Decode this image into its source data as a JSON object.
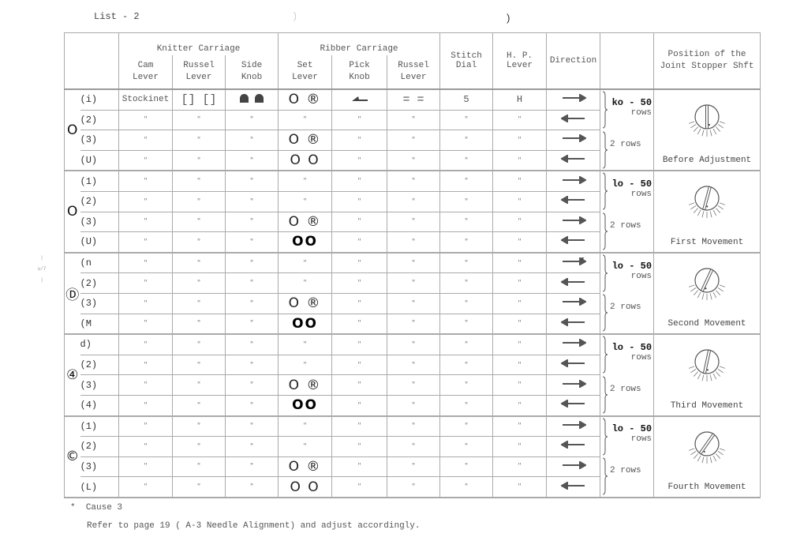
{
  "page": {
    "title": "List - 2",
    "stray_mark_1": ")",
    "stray_mark_2": ")",
    "margin_note": "u/7"
  },
  "header": {
    "knitter_carriage": "Knitter Carriage",
    "ribber_carriage": "Ribber Carriage",
    "cam_lever": "Cam\nLever",
    "knit_russel_lever": "Russel\nLever",
    "side_knob": "Side\nKnob",
    "set_lever": "Set\nLever",
    "pick_knob": "Pick\nKnob",
    "rib_russel_lever": "Russel\nLever",
    "stitch_dial": "Stitch\nDial",
    "hp_lever": "H. P.\nLever",
    "direction": "Direction",
    "rows": "",
    "position": "Position of the\nJoint Stopper Shft"
  },
  "groups": [
    {
      "label": "O",
      "rows_label_1": {
        "count": "ko - 50",
        "unit": "rows"
      },
      "rows_label_2": "2 rows",
      "position_label": "Before Adjustment",
      "dial_angle_deg": 0,
      "rows": [
        {
          "label": "(i)",
          "cells": [
            "Stockinet",
            "[] []",
            "side-knob-icon",
            "O ®",
            "pick-knob-icon",
            "= =",
            "5",
            "H"
          ],
          "direction": "right"
        },
        {
          "label": "(2)",
          "cells": [
            "\"",
            "\"",
            "\"",
            "\"",
            "\"",
            "\"",
            "\"",
            "\""
          ],
          "direction": "left"
        },
        {
          "label": "(3)",
          "cells": [
            "\"",
            "\"",
            "\"",
            "O ®",
            "\"",
            "\"",
            "\"",
            "\""
          ],
          "direction": "right"
        },
        {
          "label": "(U)",
          "cells": [
            "\"",
            "\"",
            "\"",
            "O O",
            "\"",
            "\"",
            "\"",
            "\""
          ],
          "direction": "left"
        }
      ]
    },
    {
      "label": "O",
      "rows_label_1": {
        "count": "lo - 50",
        "unit": "rows"
      },
      "rows_label_2": "2 rows",
      "position_label": "First Movement",
      "dial_angle_deg": 15,
      "rows": [
        {
          "label": "(1)",
          "cells": [
            "\"",
            "\"",
            "\"",
            "\"",
            "\"",
            "\"",
            "\"",
            "\""
          ],
          "direction": "right"
        },
        {
          "label": "(2)",
          "cells": [
            "\"",
            "\"",
            "\"",
            "\"",
            "\"",
            "\"",
            "\"",
            "\""
          ],
          "direction": "left"
        },
        {
          "label": "(3)",
          "cells": [
            "\"",
            "\"",
            "\"",
            "O ®",
            "\"",
            "\"",
            "\"",
            "\""
          ],
          "direction": "right"
        },
        {
          "label": "(U)",
          "cells": [
            "\"",
            "\"",
            "\"",
            "OO",
            "\"",
            "\"",
            "\"",
            "\""
          ],
          "direction": "left",
          "bold_set": true
        }
      ]
    },
    {
      "label": "Ⓓ",
      "rows_label_1": {
        "count": "lo - 50",
        "unit": "rows"
      },
      "rows_label_2": "2 rows",
      "position_label": "Second Movement",
      "dial_angle_deg": 25,
      "rows": [
        {
          "label": "(n",
          "cells": [
            "\"",
            "\"",
            "\"",
            "\"",
            "\"",
            "\"",
            "\"",
            "\""
          ],
          "direction": "right-star"
        },
        {
          "label": "(2)",
          "cells": [
            "\"",
            "\"",
            "\"",
            "\"",
            "\"",
            "\"",
            "\"",
            "\""
          ],
          "direction": "left"
        },
        {
          "label": "(3)",
          "cells": [
            "\"",
            "\"",
            "\"",
            "O ®",
            "\"",
            "\"",
            "\"",
            "\""
          ],
          "direction": "right"
        },
        {
          "label": "(M",
          "cells": [
            "\"",
            "\"",
            "\"",
            "OO",
            "\"",
            "\"",
            "\"",
            "\""
          ],
          "direction": "left",
          "bold_set": true
        }
      ]
    },
    {
      "label": "④",
      "rows_label_1": {
        "count": "lo - 50",
        "unit": "rows"
      },
      "rows_label_2": "2 rows",
      "position_label": "Third Movement",
      "dial_angle_deg": 12,
      "rows": [
        {
          "label": "d)",
          "cells": [
            "\"",
            "\"",
            "\"",
            "\"",
            "\"",
            "\"",
            "\"",
            "\""
          ],
          "direction": "right"
        },
        {
          "label": "(2)",
          "cells": [
            "\"",
            "\"",
            "\"",
            "\"",
            "\"",
            "\"",
            "\"",
            "\""
          ],
          "direction": "left"
        },
        {
          "label": "(3)",
          "cells": [
            "\"",
            "\"",
            "\"",
            "O ®",
            "\"",
            "\"",
            "\"",
            "\""
          ],
          "direction": "right"
        },
        {
          "label": "(4)",
          "cells": [
            "\"",
            "\"",
            "\"",
            "OO",
            "\"",
            "\"",
            "\"",
            "\""
          ],
          "direction": "left",
          "bold_set": true
        }
      ]
    },
    {
      "label": "©",
      "rows_label_1": {
        "count": "lo - 50",
        "unit": "rows"
      },
      "rows_label_2": "2 rows",
      "position_label": "Fourth Movement",
      "dial_angle_deg": 35,
      "rows": [
        {
          "label": "(1)",
          "cells": [
            "\"",
            "\"",
            "\"",
            "\"",
            "\"",
            "\"",
            "\"",
            "\""
          ],
          "direction": "right"
        },
        {
          "label": "(2)",
          "cells": [
            "\"",
            "\"",
            "\"",
            "\"",
            "\"",
            "\"",
            "\"",
            "\""
          ],
          "direction": "left"
        },
        {
          "label": "(3)",
          "cells": [
            "\"",
            "\"",
            "\"",
            "O ®",
            "\"",
            "\"",
            "\"",
            "\""
          ],
          "direction": "right"
        },
        {
          "label": "(L)",
          "cells": [
            "\"",
            "\"",
            "\"",
            "O O",
            "\"",
            "\"",
            "\"",
            "\""
          ],
          "direction": "left"
        }
      ]
    }
  ],
  "footnote": {
    "marker": "*",
    "cause": "Cause 3",
    "text": "Refer to page 19 ( A-3 Needle Alignment) and adjust accordingly."
  }
}
